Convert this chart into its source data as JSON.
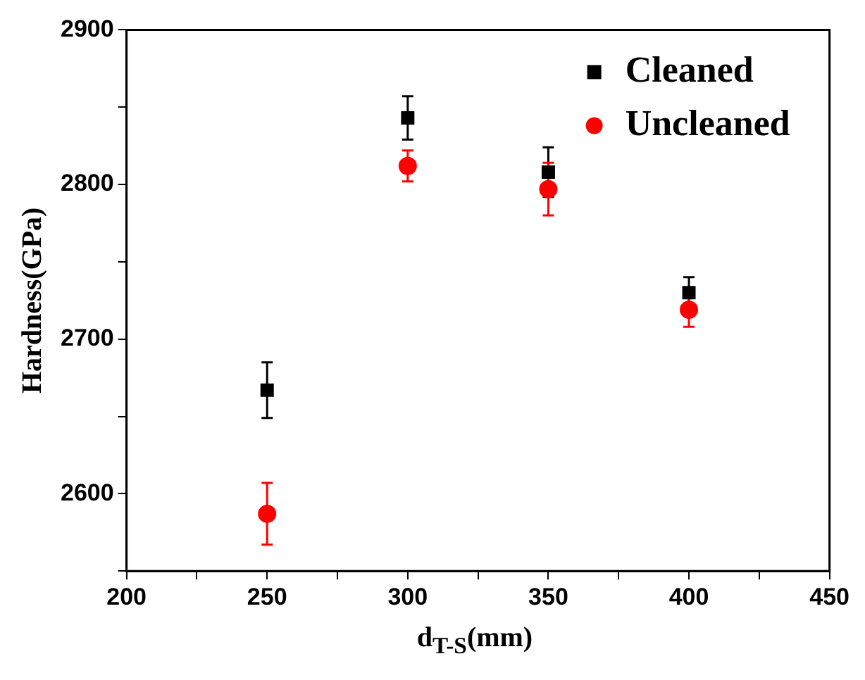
{
  "chart_data": {
    "type": "scatter",
    "xlabel": "d$_{T-S}$(mm)",
    "ylabel": "Hardness(GPa)",
    "x": [
      250,
      300,
      350,
      400
    ],
    "series": [
      {
        "name": "Cleaned",
        "color": "#000000",
        "marker": "square",
        "values": [
          2667,
          2843,
          2808,
          2730
        ],
        "errors": [
          18,
          14,
          16,
          10
        ]
      },
      {
        "name": "Uncleaned",
        "color": "#ff0000",
        "marker": "circle",
        "values": [
          2587,
          2812,
          2797,
          2719
        ],
        "errors": [
          20,
          10,
          17,
          11
        ]
      }
    ],
    "xlim": [
      200,
      450
    ],
    "xticks": [
      200,
      {
        "value": 225,
        "label": null
      },
      250,
      {
        "value": 275,
        "label": null
      },
      300,
      {
        "value": 325,
        "label": null
      },
      350,
      {
        "value": 375,
        "label": null
      },
      400,
      {
        "value": 425,
        "label": null
      },
      450
    ],
    "ylim": [
      2550,
      2900
    ],
    "yticks": [
      {
        "value": 2550,
        "label": null
      },
      2600,
      {
        "value": 2650,
        "label": null
      },
      2700,
      {
        "value": 2750,
        "label": null
      },
      2800,
      {
        "value": 2850,
        "label": null
      },
      2900
    ],
    "grid": false,
    "legend": "top right"
  }
}
